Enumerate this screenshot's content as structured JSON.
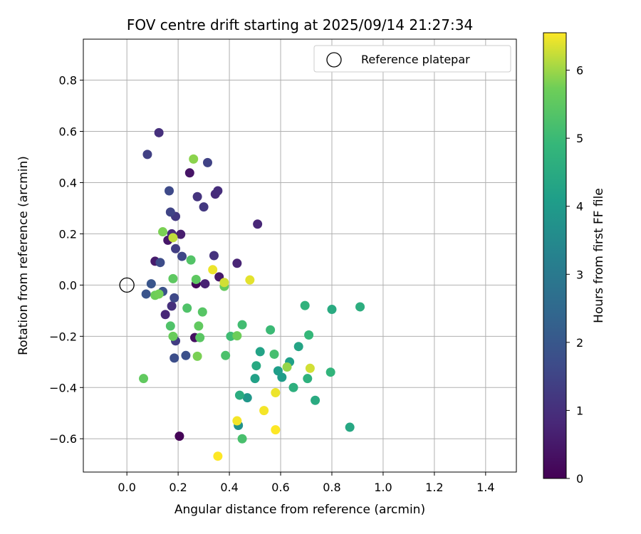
{
  "chart_data": {
    "type": "scatter",
    "title": "FOV centre drift starting at 2025/09/14 21:27:34",
    "xlabel": "Angular distance from reference (arcmin)",
    "ylabel": "Rotation from reference (arcmin)",
    "xlim": [
      -0.17,
      1.52
    ],
    "ylim": [
      -0.73,
      0.96
    ],
    "xticks": [
      0.0,
      0.2,
      0.4,
      0.6,
      0.8,
      1.0,
      1.2,
      1.4
    ],
    "xtick_labels": [
      "0.0",
      "0.2",
      "0.4",
      "0.6",
      "0.8",
      "1.0",
      "1.2",
      "1.4"
    ],
    "yticks": [
      -0.6,
      -0.4,
      -0.2,
      0.0,
      0.2,
      0.4,
      0.6,
      0.8
    ],
    "ytick_labels": [
      "−0.6",
      "−0.4",
      "−0.2",
      "0.0",
      "0.2",
      "0.4",
      "0.6",
      "0.8"
    ],
    "grid": true,
    "legend": {
      "location": "upper-right",
      "entries": [
        "Reference platepar"
      ]
    },
    "reference_point": {
      "x": 0.0,
      "y": 0.0,
      "label": "Reference platepar"
    },
    "colorbar": {
      "label": "Hours from first FF file",
      "colormap": "viridis",
      "range": [
        0,
        6.55
      ],
      "ticks": [
        0,
        1,
        2,
        3,
        4,
        5,
        6
      ],
      "tick_labels": [
        "0",
        "1",
        "2",
        "3",
        "4",
        "5",
        "6"
      ]
    },
    "points": [
      {
        "x": 0.205,
        "y": -0.59,
        "c": 0.05
      },
      {
        "x": 0.27,
        "y": 0.005,
        "c": 0.1
      },
      {
        "x": 0.265,
        "y": -0.205,
        "c": 0.3
      },
      {
        "x": 0.245,
        "y": 0.438,
        "c": 0.4
      },
      {
        "x": 0.16,
        "y": 0.175,
        "c": 0.45
      },
      {
        "x": 0.36,
        "y": 0.032,
        "c": 0.5
      },
      {
        "x": 0.11,
        "y": 0.093,
        "c": 0.55
      },
      {
        "x": 0.21,
        "y": 0.198,
        "c": 0.6
      },
      {
        "x": 0.305,
        "y": 0.005,
        "c": 0.7
      },
      {
        "x": 0.43,
        "y": 0.085,
        "c": 0.75
      },
      {
        "x": 0.51,
        "y": 0.238,
        "c": 0.8
      },
      {
        "x": 0.15,
        "y": -0.115,
        "c": 0.8
      },
      {
        "x": 0.175,
        "y": 0.2,
        "c": 0.85
      },
      {
        "x": 0.345,
        "y": 0.355,
        "c": 0.9
      },
      {
        "x": 0.355,
        "y": 0.368,
        "c": 0.95
      },
      {
        "x": 0.175,
        "y": -0.082,
        "c": 1.0
      },
      {
        "x": 0.125,
        "y": 0.595,
        "c": 1.0
      },
      {
        "x": 0.34,
        "y": 0.115,
        "c": 1.05
      },
      {
        "x": 0.275,
        "y": 0.345,
        "c": 1.1
      },
      {
        "x": 0.3,
        "y": 0.305,
        "c": 1.2
      },
      {
        "x": 0.19,
        "y": 0.268,
        "c": 1.2
      },
      {
        "x": 0.19,
        "y": -0.218,
        "c": 1.3
      },
      {
        "x": 0.19,
        "y": 0.142,
        "c": 1.35
      },
      {
        "x": 0.08,
        "y": 0.51,
        "c": 1.4
      },
      {
        "x": 0.315,
        "y": 0.478,
        "c": 1.45
      },
      {
        "x": 0.17,
        "y": 0.285,
        "c": 1.5
      },
      {
        "x": 0.215,
        "y": 0.112,
        "c": 1.55
      },
      {
        "x": 0.185,
        "y": -0.05,
        "c": 1.6
      },
      {
        "x": 0.165,
        "y": 0.368,
        "c": 1.65
      },
      {
        "x": 0.13,
        "y": 0.088,
        "c": 1.7
      },
      {
        "x": 0.185,
        "y": -0.285,
        "c": 1.75
      },
      {
        "x": 0.23,
        "y": -0.275,
        "c": 1.8
      },
      {
        "x": 0.14,
        "y": -0.025,
        "c": 1.85
      },
      {
        "x": 0.075,
        "y": -0.035,
        "c": 1.9
      },
      {
        "x": 0.095,
        "y": 0.005,
        "c": 1.95
      },
      {
        "x": 0.435,
        "y": -0.548,
        "c": 3.7
      },
      {
        "x": 0.47,
        "y": -0.44,
        "c": 3.9
      },
      {
        "x": 0.605,
        "y": -0.36,
        "c": 4.05
      },
      {
        "x": 0.59,
        "y": -0.335,
        "c": 4.1
      },
      {
        "x": 0.635,
        "y": -0.3,
        "c": 4.15
      },
      {
        "x": 0.5,
        "y": -0.365,
        "c": 4.2
      },
      {
        "x": 0.52,
        "y": -0.26,
        "c": 4.25
      },
      {
        "x": 0.67,
        "y": -0.24,
        "c": 4.3
      },
      {
        "x": 0.87,
        "y": -0.555,
        "c": 4.4
      },
      {
        "x": 0.505,
        "y": -0.315,
        "c": 4.45
      },
      {
        "x": 0.735,
        "y": -0.45,
        "c": 4.5
      },
      {
        "x": 0.8,
        "y": -0.095,
        "c": 4.5
      },
      {
        "x": 0.44,
        "y": -0.43,
        "c": 4.55
      },
      {
        "x": 0.91,
        "y": -0.085,
        "c": 4.6
      },
      {
        "x": 0.65,
        "y": -0.4,
        "c": 4.65
      },
      {
        "x": 0.705,
        "y": -0.365,
        "c": 4.7
      },
      {
        "x": 0.695,
        "y": -0.08,
        "c": 4.75
      },
      {
        "x": 0.795,
        "y": -0.34,
        "c": 4.8
      },
      {
        "x": 0.71,
        "y": -0.195,
        "c": 4.9
      },
      {
        "x": 0.56,
        "y": -0.175,
        "c": 5.0
      },
      {
        "x": 0.405,
        "y": -0.2,
        "c": 5.05
      },
      {
        "x": 0.45,
        "y": -0.155,
        "c": 5.1
      },
      {
        "x": 0.575,
        "y": -0.27,
        "c": 5.15
      },
      {
        "x": 0.45,
        "y": -0.6,
        "c": 5.2
      },
      {
        "x": 0.385,
        "y": -0.275,
        "c": 5.25
      },
      {
        "x": 0.235,
        "y": -0.09,
        "c": 5.3
      },
      {
        "x": 0.17,
        "y": -0.16,
        "c": 5.3
      },
      {
        "x": 0.25,
        "y": 0.098,
        "c": 5.35
      },
      {
        "x": 0.295,
        "y": -0.105,
        "c": 5.4
      },
      {
        "x": 0.285,
        "y": -0.205,
        "c": 5.45
      },
      {
        "x": 0.18,
        "y": 0.025,
        "c": 5.5
      },
      {
        "x": 0.27,
        "y": 0.022,
        "c": 5.5
      },
      {
        "x": 0.065,
        "y": -0.365,
        "c": 5.55
      },
      {
        "x": 0.28,
        "y": -0.16,
        "c": 5.55
      },
      {
        "x": 0.38,
        "y": -0.005,
        "c": 5.6
      },
      {
        "x": 0.18,
        "y": -0.2,
        "c": 5.65
      },
      {
        "x": 0.43,
        "y": -0.198,
        "c": 5.7
      },
      {
        "x": 0.11,
        "y": -0.04,
        "c": 5.7
      },
      {
        "x": 0.125,
        "y": -0.035,
        "c": 5.75
      },
      {
        "x": 0.275,
        "y": -0.278,
        "c": 5.8
      },
      {
        "x": 0.14,
        "y": 0.208,
        "c": 5.8
      },
      {
        "x": 0.26,
        "y": 0.492,
        "c": 5.9
      },
      {
        "x": 0.625,
        "y": -0.32,
        "c": 5.95
      },
      {
        "x": 0.18,
        "y": 0.185,
        "c": 6.2
      },
      {
        "x": 0.715,
        "y": -0.325,
        "c": 6.3
      },
      {
        "x": 0.38,
        "y": 0.01,
        "c": 6.3
      },
      {
        "x": 0.48,
        "y": 0.02,
        "c": 6.4
      },
      {
        "x": 0.335,
        "y": 0.06,
        "c": 6.45
      },
      {
        "x": 0.58,
        "y": -0.42,
        "c": 6.45
      },
      {
        "x": 0.535,
        "y": -0.49,
        "c": 6.5
      },
      {
        "x": 0.43,
        "y": -0.53,
        "c": 6.5
      },
      {
        "x": 0.58,
        "y": -0.565,
        "c": 6.55
      },
      {
        "x": 0.355,
        "y": -0.668,
        "c": 6.55
      }
    ]
  }
}
